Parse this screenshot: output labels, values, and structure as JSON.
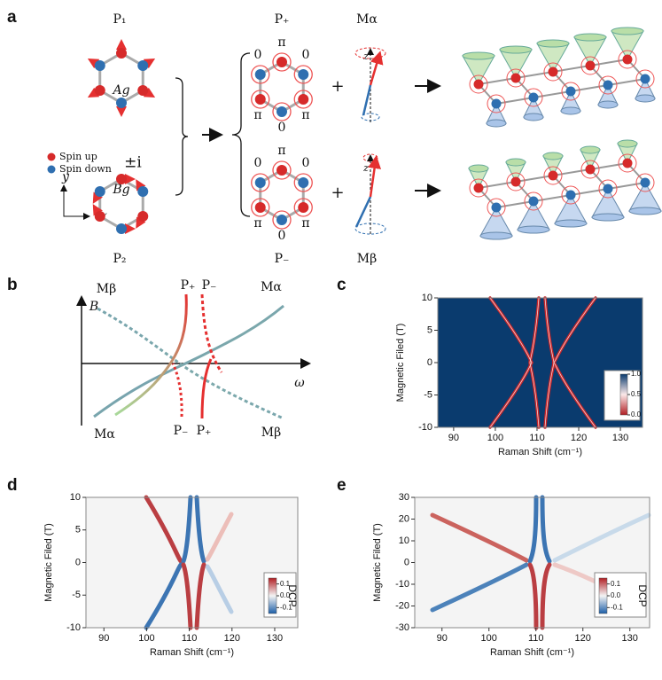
{
  "figure": {
    "panel_labels": [
      "a",
      "b",
      "c",
      "d",
      "e"
    ],
    "a": {
      "top_labels": [
        "P₁",
        "P₊",
        "Mα"
      ],
      "bottom_labels": [
        "P₂",
        "P₋",
        "Mβ"
      ],
      "irreps": [
        "Ag",
        "Bg"
      ],
      "coupling": "±i",
      "legend": [
        "Spin up",
        "Spin down"
      ],
      "axes": [
        "y",
        "x"
      ],
      "phase_top": [
        "π",
        "0",
        "0",
        "π",
        "π",
        "0"
      ],
      "phase_bottom": [
        "π",
        "0",
        "0",
        "π",
        "π",
        "0"
      ],
      "z": [
        "z",
        "z"
      ],
      "plus": [
        "+",
        "+"
      ]
    },
    "b": {
      "axes": [
        "B",
        "ω"
      ],
      "top": [
        "Mβ",
        "P₊",
        "P₋",
        "Mα"
      ],
      "bottom": [
        "Mα",
        "P₋",
        "P₊",
        "Mβ"
      ]
    }
  },
  "chart_data": [
    {
      "type": "heatmap",
      "xlabel": "Raman Shift (cm⁻¹)",
      "ylabel": "Magnetic Filed (T)",
      "xlim": [
        86.2,
        135.3
      ],
      "ylim": [
        -10,
        10
      ],
      "xticks": [
        90,
        100,
        110,
        120,
        130
      ],
      "yticks": [
        -10,
        -5,
        0,
        5,
        10
      ],
      "colorbar": {
        "lim": [
          0,
          1
        ],
        "ticks": [
          {
            "value": 1,
            "label": "1.0"
          },
          {
            "value": 0.5,
            "label": "0.5"
          },
          {
            "value": 0,
            "label": "0.0"
          }
        ]
      }
    },
    {
      "type": "heatmap",
      "xlabel": "Raman Shift (cm⁻¹)",
      "ylabel": "Magnetic Filed (T)",
      "xlim": [
        85.8,
        135.4
      ],
      "ylim": [
        -10,
        10
      ],
      "xticks": [
        90,
        100,
        110,
        120,
        130
      ],
      "yticks": [
        -10,
        -5,
        0,
        5,
        10
      ],
      "colorbar": {
        "label": "DCP",
        "lim": [
          -0.15,
          0.15
        ],
        "ticks": [
          0.1,
          {
            "value": 0,
            "label": "0.0"
          },
          -0.1
        ]
      }
    },
    {
      "type": "heatmap",
      "xlabel": "Raman Shift (cm⁻¹)",
      "ylabel": "Magnetic Filed (T)",
      "xlim": [
        84.2,
        134.2
      ],
      "ylim": [
        -30,
        30
      ],
      "xticks": [
        90,
        100,
        110,
        120,
        130
      ],
      "yticks": [
        -30,
        -20,
        -10,
        0,
        10,
        20,
        30
      ],
      "colorbar": {
        "label": "DCP",
        "lim": [
          -0.15,
          0.15
        ],
        "ticks": [
          0.1,
          {
            "value": 0,
            "label": "0.0"
          },
          -0.1
        ]
      }
    }
  ]
}
